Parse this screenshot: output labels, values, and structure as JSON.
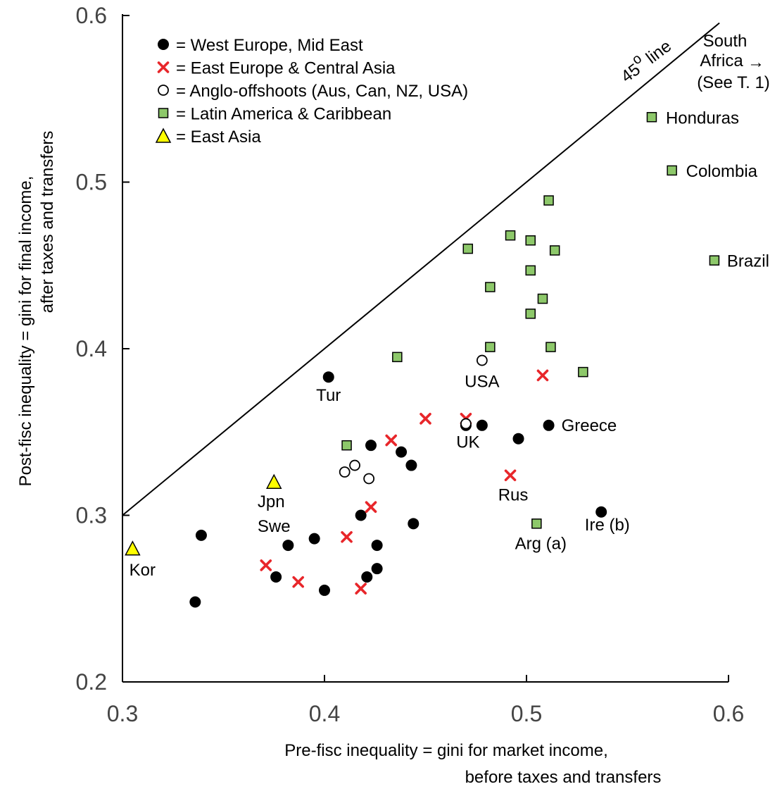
{
  "chart_data": {
    "type": "scatter",
    "title": "",
    "xlabel": [
      "Pre-fisc inequality = gini for market income,",
      "before taxes and transfers"
    ],
    "ylabel": [
      "Post-fisc inequality = gini for final income,",
      "after taxes and transfers"
    ],
    "xlim": [
      0.3,
      0.6
    ],
    "ylim": [
      0.2,
      0.6
    ],
    "x_ticks": [
      "0.3",
      "0.4",
      "0.5",
      "0.6"
    ],
    "y_ticks": [
      "0.2",
      "0.3",
      "0.4",
      "0.5",
      "0.6"
    ],
    "grid": false,
    "legend_position": "top-left",
    "reference_line": {
      "label_main": "45",
      "label_sup": "o",
      "label_rest": " line",
      "x": [
        0.3,
        0.6
      ],
      "y": [
        0.3,
        0.6
      ]
    },
    "annotation": {
      "lines": [
        "South",
        "Africa",
        "(See T. 1)"
      ],
      "arrow": "→"
    },
    "series": [
      {
        "name": "= West Europe, Mid East",
        "marker": "circle-filled",
        "color": "#000000",
        "points": [
          {
            "x": 0.402,
            "y": 0.383,
            "label": "Tur"
          },
          {
            "x": 0.511,
            "y": 0.354,
            "label": "Greece"
          },
          {
            "x": 0.537,
            "y": 0.302,
            "label": ""
          },
          {
            "x": 0.336,
            "y": 0.248,
            "label": ""
          },
          {
            "x": 0.339,
            "y": 0.288,
            "label": ""
          },
          {
            "x": 0.376,
            "y": 0.263,
            "label": ""
          },
          {
            "x": 0.382,
            "y": 0.282,
            "label": ""
          },
          {
            "x": 0.395,
            "y": 0.286,
            "label": ""
          },
          {
            "x": 0.4,
            "y": 0.255,
            "label": ""
          },
          {
            "x": 0.418,
            "y": 0.3,
            "label": ""
          },
          {
            "x": 0.421,
            "y": 0.263,
            "label": ""
          },
          {
            "x": 0.423,
            "y": 0.342,
            "label": ""
          },
          {
            "x": 0.426,
            "y": 0.268,
            "label": ""
          },
          {
            "x": 0.426,
            "y": 0.282,
            "label": ""
          },
          {
            "x": 0.438,
            "y": 0.338,
            "label": ""
          },
          {
            "x": 0.443,
            "y": 0.33,
            "label": ""
          },
          {
            "x": 0.444,
            "y": 0.295,
            "label": ""
          },
          {
            "x": 0.47,
            "y": 0.354,
            "label": ""
          },
          {
            "x": 0.478,
            "y": 0.354,
            "label": ""
          },
          {
            "x": 0.496,
            "y": 0.346,
            "label": ""
          }
        ]
      },
      {
        "name": "= East Europe & Central Asia",
        "marker": "x",
        "color": "#e8262a",
        "points": [
          {
            "x": 0.371,
            "y": 0.27,
            "label": ""
          },
          {
            "x": 0.387,
            "y": 0.26,
            "label": ""
          },
          {
            "x": 0.411,
            "y": 0.287,
            "label": ""
          },
          {
            "x": 0.418,
            "y": 0.256,
            "label": ""
          },
          {
            "x": 0.423,
            "y": 0.305,
            "label": ""
          },
          {
            "x": 0.433,
            "y": 0.345,
            "label": ""
          },
          {
            "x": 0.45,
            "y": 0.358,
            "label": ""
          },
          {
            "x": 0.47,
            "y": 0.358,
            "label": ""
          },
          {
            "x": 0.492,
            "y": 0.324,
            "label": "Rus"
          },
          {
            "x": 0.508,
            "y": 0.384,
            "label": ""
          }
        ]
      },
      {
        "name": "= Anglo-offshoots (Aus, Can, NZ, USA)",
        "marker": "circle-open",
        "color": "#000000",
        "points": [
          {
            "x": 0.41,
            "y": 0.326,
            "label": ""
          },
          {
            "x": 0.415,
            "y": 0.33,
            "label": ""
          },
          {
            "x": 0.422,
            "y": 0.322,
            "label": ""
          },
          {
            "x": 0.478,
            "y": 0.393,
            "label": "USA"
          },
          {
            "x": 0.47,
            "y": 0.355,
            "label": "UK"
          }
        ]
      },
      {
        "name": "= Latin America & Caribbean",
        "marker": "square",
        "color": "#8dc86a",
        "points": [
          {
            "x": 0.562,
            "y": 0.539,
            "label": "Honduras"
          },
          {
            "x": 0.572,
            "y": 0.507,
            "label": "Colombia"
          },
          {
            "x": 0.593,
            "y": 0.453,
            "label": "Brazil"
          },
          {
            "x": 0.511,
            "y": 0.489,
            "label": ""
          },
          {
            "x": 0.492,
            "y": 0.468,
            "label": ""
          },
          {
            "x": 0.502,
            "y": 0.465,
            "label": ""
          },
          {
            "x": 0.471,
            "y": 0.46,
            "label": ""
          },
          {
            "x": 0.514,
            "y": 0.459,
            "label": ""
          },
          {
            "x": 0.502,
            "y": 0.447,
            "label": ""
          },
          {
            "x": 0.482,
            "y": 0.437,
            "label": ""
          },
          {
            "x": 0.508,
            "y": 0.43,
            "label": ""
          },
          {
            "x": 0.502,
            "y": 0.421,
            "label": ""
          },
          {
            "x": 0.482,
            "y": 0.401,
            "label": ""
          },
          {
            "x": 0.512,
            "y": 0.401,
            "label": ""
          },
          {
            "x": 0.436,
            "y": 0.395,
            "label": ""
          },
          {
            "x": 0.528,
            "y": 0.386,
            "label": ""
          },
          {
            "x": 0.411,
            "y": 0.342,
            "label": ""
          },
          {
            "x": 0.505,
            "y": 0.295,
            "label": "Arg (a)"
          }
        ]
      },
      {
        "name": "= East Asia",
        "marker": "triangle",
        "color": "#ffff00",
        "points": [
          {
            "x": 0.305,
            "y": 0.28,
            "label": "Kor"
          },
          {
            "x": 0.375,
            "y": 0.32,
            "label": "Jpn"
          }
        ]
      }
    ],
    "annotations": [
      {
        "text": "Swe",
        "x": 0.375,
        "y": 0.29
      },
      {
        "text": "Ire (b)",
        "x": 0.54,
        "y": 0.291
      }
    ]
  }
}
